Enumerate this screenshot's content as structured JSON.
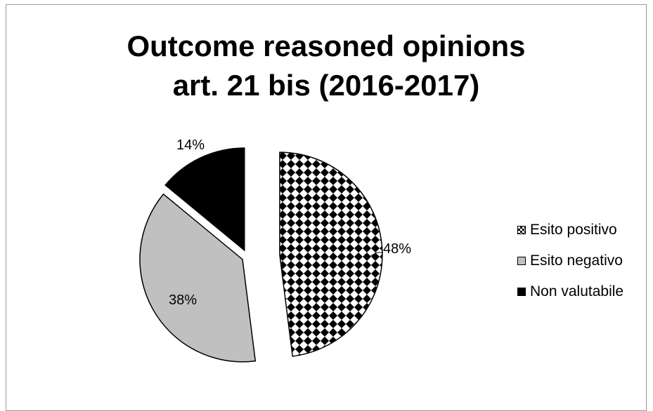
{
  "chart_data": {
    "type": "pie",
    "title_lines": [
      "Outcome reasoned opinions",
      "art. 21 bis (2016-2017)"
    ],
    "categories": [
      "Esito positivo",
      "Esito negativo",
      "Non valutabile"
    ],
    "values": [
      48,
      38,
      14
    ],
    "value_labels": [
      "48%",
      "38%",
      "14%"
    ],
    "legend_position": "right",
    "colors": [
      "#000000",
      "#c0c0c0",
      "#000000"
    ],
    "fills": [
      "checkered",
      "solid-gray",
      "solid-black"
    ]
  }
}
